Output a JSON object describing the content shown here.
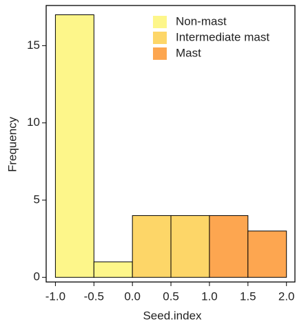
{
  "chart_data": {
    "type": "histogram",
    "x_label": "Seed.index",
    "y_label": "Frequency",
    "series": [
      {
        "name": "Non-mast",
        "color": "#fdf68a",
        "bins": [
          -1.0,
          -0.5,
          0.0
        ],
        "counts": [
          17,
          1
        ]
      },
      {
        "name": "Intermediate mast",
        "color": "#fdd668",
        "bins": [
          0.0,
          0.5,
          1.0
        ],
        "counts": [
          4,
          4
        ]
      },
      {
        "name": "Mast",
        "color": "#fda650",
        "bins": [
          1.0,
          1.5,
          2.0
        ],
        "counts": [
          4,
          3
        ]
      }
    ],
    "xlim": [
      -1.12,
      2.11
    ],
    "ylim": [
      -0.3,
      17.6
    ],
    "xticks": [
      {
        "value": -1.0,
        "label": "-1.0"
      },
      -0.5,
      {
        "value": 0,
        "label": "0.0"
      },
      0.5,
      {
        "value": 1,
        "label": "1.0"
      },
      1.5,
      {
        "value": 2,
        "label": "2.0"
      }
    ],
    "yticks": [
      0,
      5,
      10,
      15
    ],
    "legend": "top-right"
  }
}
